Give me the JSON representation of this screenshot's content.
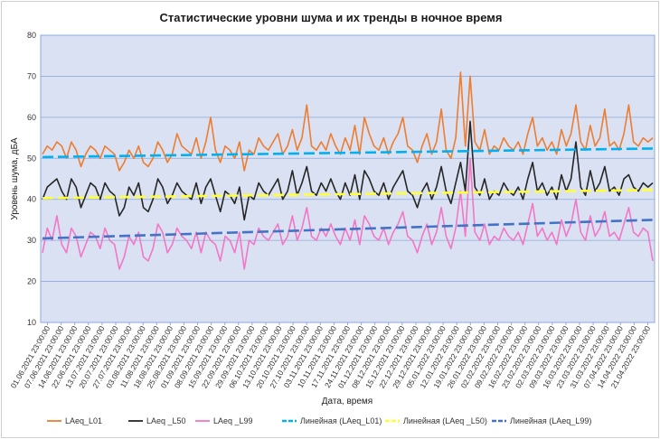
{
  "chart_data": {
    "type": "line",
    "title": "Статистические уровни шума и их тренды в ночное время",
    "xlabel": "Дата, время",
    "ylabel": "Уровень шума, дБА",
    "ylim": [
      10,
      80
    ],
    "yticks": [
      10,
      20,
      30,
      40,
      50,
      60,
      70,
      80
    ],
    "grid": true,
    "legend_position": "bottom",
    "x_tick_labels": [
      "01.06.2021 23:00:00",
      "07.06.2021 23:00:00",
      "14.06.2021 23:00:00",
      "22.06.2021 23:00:00",
      "13.07.2021 23:00:00",
      "20.07.2021 23:00:00",
      "27.07.2021 23:00:00",
      "03.08.2021 23:00:00",
      "11.08.2021 23:00:00",
      "18.08.2021 23:00:00",
      "25.08.2021 23:00:00",
      "01.09.2021 23:00:00",
      "08.09.2021 23:00:00",
      "15.09.2021 23:00:00",
      "22.09.2021 23:00:00",
      "29.09.2021 23:00:00",
      "06.10.2021 23:00:00",
      "13.10.2021 23:00:00",
      "20.10.2021 23:00:00",
      "27.10.2021 23:00:00",
      "03.11.2021 23:00:00",
      "10.11.2021 23:00:00",
      "17.11.2021 23:00:00",
      "24.11.2021 23:00:00",
      "01.12.2021 23:00:00",
      "08.12.2021 23:00:00",
      "15.12.2021 23:00:00",
      "22.12.2021 23:00:00",
      "29.12.2021 23:00:00",
      "05.01.2022 23:00:00",
      "12.01.2022 23:00:00",
      "19.01.2022 23:00:00",
      "26.01.2022 23:00:00",
      "02.02.2022 23:00:00",
      "09.02.2022 23:00:00",
      "16.02.2022 23:00:00",
      "23.02.2022 23:00:00",
      "02.03.2022 23:00:00",
      "09.03.2022 23:00:00",
      "16.03.2022 23:00:00",
      "23.03.2022 23:00:00",
      "31.03.2022 23:00:00",
      "07.04.2022 23:00:00",
      "14.04.2022 23:00:00",
      "21.04.2022 23:00:00"
    ],
    "series": [
      {
        "name": "LAeq_L01",
        "color": "#ED7D31",
        "style": "solid",
        "values": [
          51,
          53,
          52,
          54,
          53,
          50,
          54,
          52,
          48,
          51,
          53,
          52,
          50,
          53,
          52,
          51,
          47,
          49,
          52,
          50,
          53,
          49,
          48,
          50,
          54,
          52,
          49,
          51,
          56,
          53,
          52,
          51,
          55,
          50,
          54,
          60,
          52,
          49,
          53,
          52,
          50,
          54,
          47,
          52,
          51,
          55,
          53,
          52,
          54,
          56,
          51,
          53,
          57,
          52,
          55,
          63,
          53,
          52,
          54,
          52,
          56,
          53,
          51,
          55,
          52,
          58,
          51,
          60,
          56,
          53,
          52,
          55,
          51,
          54,
          56,
          60,
          53,
          52,
          49,
          53,
          56,
          51,
          54,
          62,
          52,
          50,
          55,
          71,
          53,
          70,
          54,
          52,
          57,
          51,
          53,
          52,
          55,
          53,
          52,
          54,
          51,
          56,
          60,
          53,
          55,
          52,
          54,
          51,
          57,
          53,
          56,
          63,
          54,
          52,
          58,
          53,
          55,
          62,
          53,
          54,
          52,
          56,
          63,
          54,
          53,
          55,
          54,
          55
        ]
      },
      {
        "name": "LAeq _L50",
        "color": "#262626",
        "style": "solid",
        "values": [
          40,
          43,
          44,
          45,
          42,
          40,
          45,
          43,
          38,
          41,
          44,
          43,
          40,
          44,
          42,
          41,
          36,
          38,
          43,
          41,
          44,
          38,
          37,
          40,
          45,
          43,
          39,
          41,
          44,
          42,
          41,
          40,
          44,
          39,
          43,
          45,
          41,
          37,
          42,
          41,
          39,
          43,
          35,
          41,
          40,
          44,
          42,
          41,
          43,
          45,
          40,
          42,
          47,
          41,
          44,
          48,
          42,
          41,
          44,
          42,
          45,
          42,
          40,
          44,
          41,
          46,
          40,
          47,
          45,
          42,
          41,
          44,
          40,
          43,
          45,
          47,
          42,
          41,
          38,
          42,
          44,
          40,
          43,
          48,
          42,
          39,
          44,
          49,
          42,
          59,
          43,
          41,
          45,
          40,
          42,
          41,
          44,
          42,
          41,
          43,
          40,
          45,
          49,
          42,
          44,
          41,
          43,
          40,
          46,
          42,
          45,
          54,
          43,
          41,
          47,
          42,
          44,
          48,
          42,
          43,
          41,
          45,
          46,
          43,
          42,
          44,
          43,
          44
        ]
      },
      {
        "name": "LAeq _L99",
        "color": "#F277C6",
        "style": "solid",
        "values": [
          27,
          33,
          30,
          36,
          29,
          27,
          33,
          31,
          26,
          29,
          32,
          31,
          28,
          33,
          30,
          29,
          23,
          26,
          31,
          29,
          32,
          26,
          25,
          28,
          34,
          32,
          27,
          29,
          33,
          31,
          30,
          28,
          32,
          27,
          32,
          30,
          29,
          25,
          31,
          30,
          27,
          32,
          23,
          30,
          29,
          33,
          31,
          30,
          32,
          34,
          29,
          31,
          36,
          30,
          33,
          38,
          31,
          30,
          33,
          31,
          34,
          31,
          29,
          33,
          30,
          35,
          29,
          36,
          34,
          31,
          30,
          33,
          29,
          32,
          34,
          37,
          31,
          30,
          27,
          31,
          34,
          29,
          32,
          38,
          31,
          28,
          33,
          42,
          31,
          50,
          32,
          30,
          34,
          29,
          31,
          30,
          33,
          31,
          30,
          32,
          29,
          34,
          39,
          31,
          33,
          30,
          32,
          29,
          35,
          31,
          34,
          40,
          32,
          30,
          36,
          31,
          33,
          37,
          31,
          32,
          30,
          34,
          38,
          32,
          31,
          33,
          32,
          25
        ]
      },
      {
        "name": "Линейная (LAeq_L01)",
        "color": "#00B0F0",
        "style": "dashed",
        "values": [
          50.3,
          52.4
        ]
      },
      {
        "name": "Линейная (LAeq _L50)",
        "color": "#FFFF3C",
        "style": "dashed",
        "values": [
          40.3,
          42.3
        ]
      },
      {
        "name": "Линейная (LAeq_L99)",
        "color": "#4472C4",
        "style": "dashed",
        "values": [
          30.5,
          35.0
        ]
      }
    ]
  }
}
